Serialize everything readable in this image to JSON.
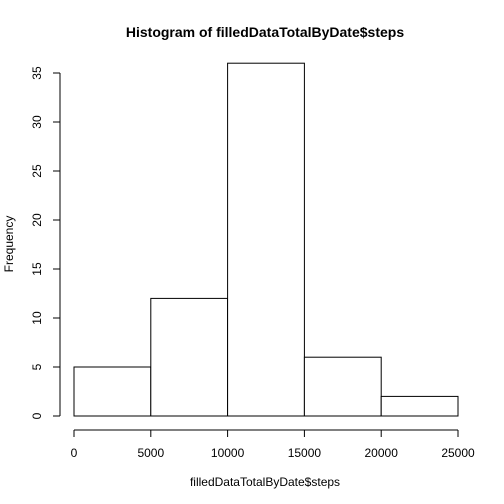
{
  "chart_data": {
    "type": "bar",
    "subtype": "histogram",
    "title": "Histogram of filledDataTotalByDate$steps",
    "xlabel": "filledDataTotalByDate$steps",
    "ylabel": "Frequency",
    "bins": [
      {
        "from": 0,
        "to": 5000,
        "count": 5
      },
      {
        "from": 5000,
        "to": 10000,
        "count": 12
      },
      {
        "from": 10000,
        "to": 15000,
        "count": 36
      },
      {
        "from": 15000,
        "to": 20000,
        "count": 6
      },
      {
        "from": 20000,
        "to": 25000,
        "count": 2
      }
    ],
    "xlim": [
      0,
      25000
    ],
    "ylim": [
      0,
      35
    ],
    "x_ticks": [
      0,
      5000,
      10000,
      15000,
      20000,
      25000
    ],
    "y_ticks": [
      0,
      5,
      10,
      15,
      20,
      25,
      30,
      35
    ],
    "grid": false,
    "legend": "none",
    "colors": {
      "bar_fill": "#ffffff",
      "bar_stroke": "#000000",
      "background": "#ffffff"
    }
  }
}
